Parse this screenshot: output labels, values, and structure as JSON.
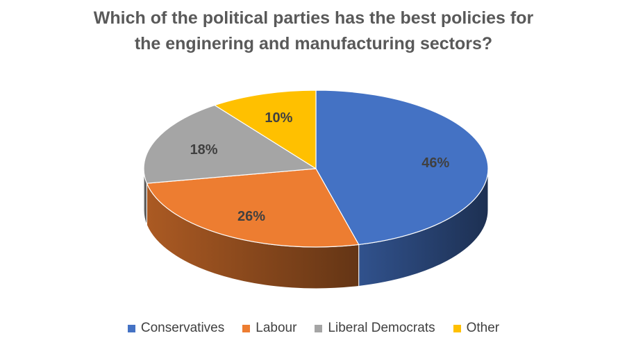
{
  "chart_data": {
    "type": "pie",
    "title_lines": [
      "Which of the political parties has the best policies for",
      "the enginering and manufacturing sectors?"
    ],
    "categories": [
      "Conservatives",
      "Labour",
      "Liberal Democrats",
      "Other"
    ],
    "values": [
      46,
      26,
      18,
      10
    ],
    "data_labels": [
      "46%",
      "26%",
      "18%",
      "10%"
    ],
    "colors": [
      "#4472C4",
      "#ED7D31",
      "#A5A5A5",
      "#FFC000"
    ],
    "legend_position": "bottom",
    "style": "3d-pie"
  }
}
